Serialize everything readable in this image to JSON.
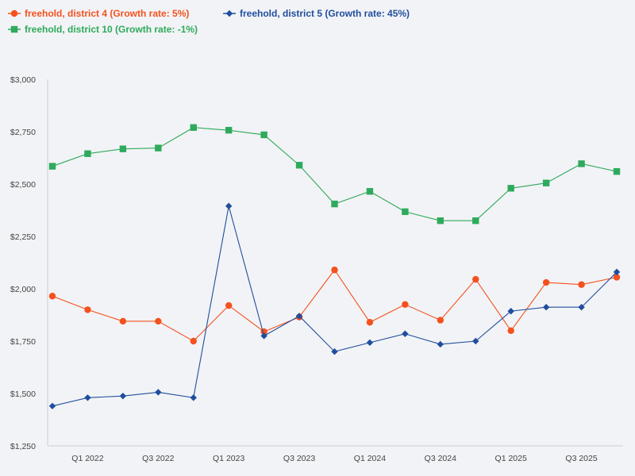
{
  "chart_data": {
    "type": "line",
    "title": "",
    "xlabel": "",
    "ylabel": "",
    "ylim": [
      1250,
      3000
    ],
    "y_ticks": [
      1250,
      1500,
      1750,
      2000,
      2250,
      2500,
      2750,
      3000
    ],
    "y_tick_labels": [
      "$1,250",
      "$1,500",
      "$1,750",
      "$2,000",
      "$2,250",
      "$2,500",
      "$2,750",
      "$3,000"
    ],
    "grid": false,
    "legend_position": "top-left",
    "x": [
      "Q4 2021",
      "Q1 2022",
      "Q2 2022",
      "Q3 2022",
      "Q4 2022",
      "Q1 2023",
      "Q2 2023",
      "Q3 2023",
      "Q4 2023",
      "Q1 2024",
      "Q2 2024",
      "Q3 2024",
      "Q4 2024",
      "Q1 2025",
      "Q2 2025",
      "Q3 2025",
      "Q4 2025"
    ],
    "x_tick_labels": [
      "Q1 2022",
      "Q3 2022",
      "Q1 2023",
      "Q3 2023",
      "Q1 2024",
      "Q3 2024",
      "Q1 2025",
      "Q3 2025"
    ],
    "series": [
      {
        "name": "freehold, district 4 (Growth rate: 5%)",
        "color": "#f4511e",
        "marker": "circle",
        "values": [
          1965,
          1900,
          1845,
          1845,
          1750,
          1920,
          1795,
          1865,
          2090,
          1840,
          1925,
          1850,
          2045,
          1800,
          2030,
          2020,
          2055
        ]
      },
      {
        "name": "freehold, district 5 (Growth rate: 45%)",
        "color": "#1f4e9e",
        "marker": "diamond",
        "values": [
          1440,
          1480,
          1488,
          1506,
          1480,
          2395,
          1775,
          1870,
          1700,
          1743,
          1785,
          1735,
          1750,
          1893,
          1912,
          1912,
          2080
        ]
      },
      {
        "name": "freehold, district 10 (Growth rate: -1%)",
        "color": "#2eaa5c",
        "marker": "square",
        "values": [
          2585,
          2645,
          2668,
          2672,
          2770,
          2757,
          2735,
          2590,
          2405,
          2465,
          2368,
          2325,
          2325,
          2480,
          2505,
          2597,
          2560
        ]
      }
    ]
  }
}
